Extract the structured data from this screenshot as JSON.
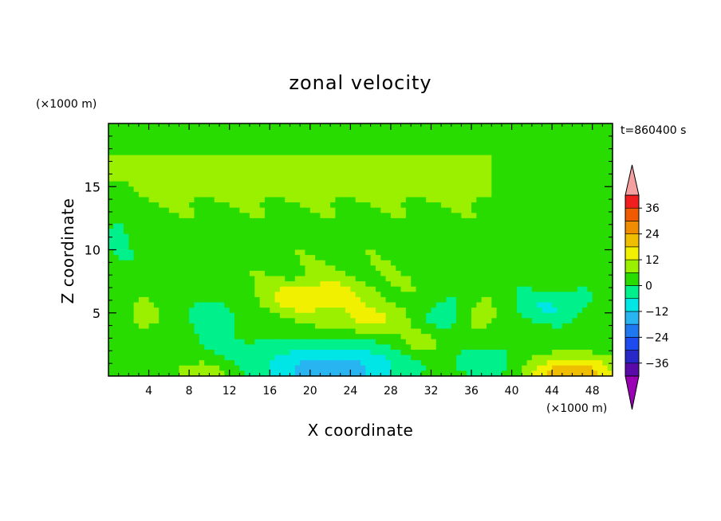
{
  "chart_data": {
    "type": "heatmap",
    "title": "zonal velocity",
    "xlabel": "X coordinate",
    "ylabel": "Z coordinate",
    "x_unit": "(×1000 m)",
    "y_unit": "(×1000 m)",
    "time_label": "t=860400 s",
    "xlim": [
      0,
      50
    ],
    "ylim": [
      0,
      20
    ],
    "x_ticks": [
      4,
      8,
      12,
      16,
      20,
      24,
      28,
      32,
      36,
      40,
      44,
      48
    ],
    "y_ticks": [
      5,
      10,
      15
    ],
    "colorbar": {
      "levels": [
        -42,
        -36,
        -30,
        -24,
        -18,
        -12,
        -6,
        0,
        6,
        12,
        18,
        24,
        30,
        36,
        42
      ],
      "tick_labels": [
        "36",
        "24",
        "12",
        "0",
        "−12",
        "−24",
        "−36"
      ],
      "tick_values": [
        36,
        24,
        12,
        0,
        -12,
        -24,
        -36
      ],
      "colors": [
        "#9a00b4",
        "#5a0aa8",
        "#2828c8",
        "#1e4bf0",
        "#1e78f0",
        "#28b4f0",
        "#00e6e6",
        "#00f08c",
        "#28dc00",
        "#9bf000",
        "#f0f000",
        "#f0be00",
        "#f08c00",
        "#f05a00",
        "#f01e1e",
        "#f5a0a0"
      ],
      "underflow_color": "#9a00b4",
      "overflow_color": "#f5a0a0"
    },
    "grid": false,
    "field_summary": {
      "background_level": "0 to 6",
      "upper_band_level": "6 to 12",
      "positive_core_max": 18,
      "positive_core_x": [
        14,
        33
      ],
      "positive_core_z": [
        3,
        8
      ],
      "surface_negative_min": -18,
      "surface_negative_x": [
        16,
        28
      ],
      "surface_positive_max": 24,
      "surface_positive_x": [
        40,
        50
      ]
    }
  }
}
